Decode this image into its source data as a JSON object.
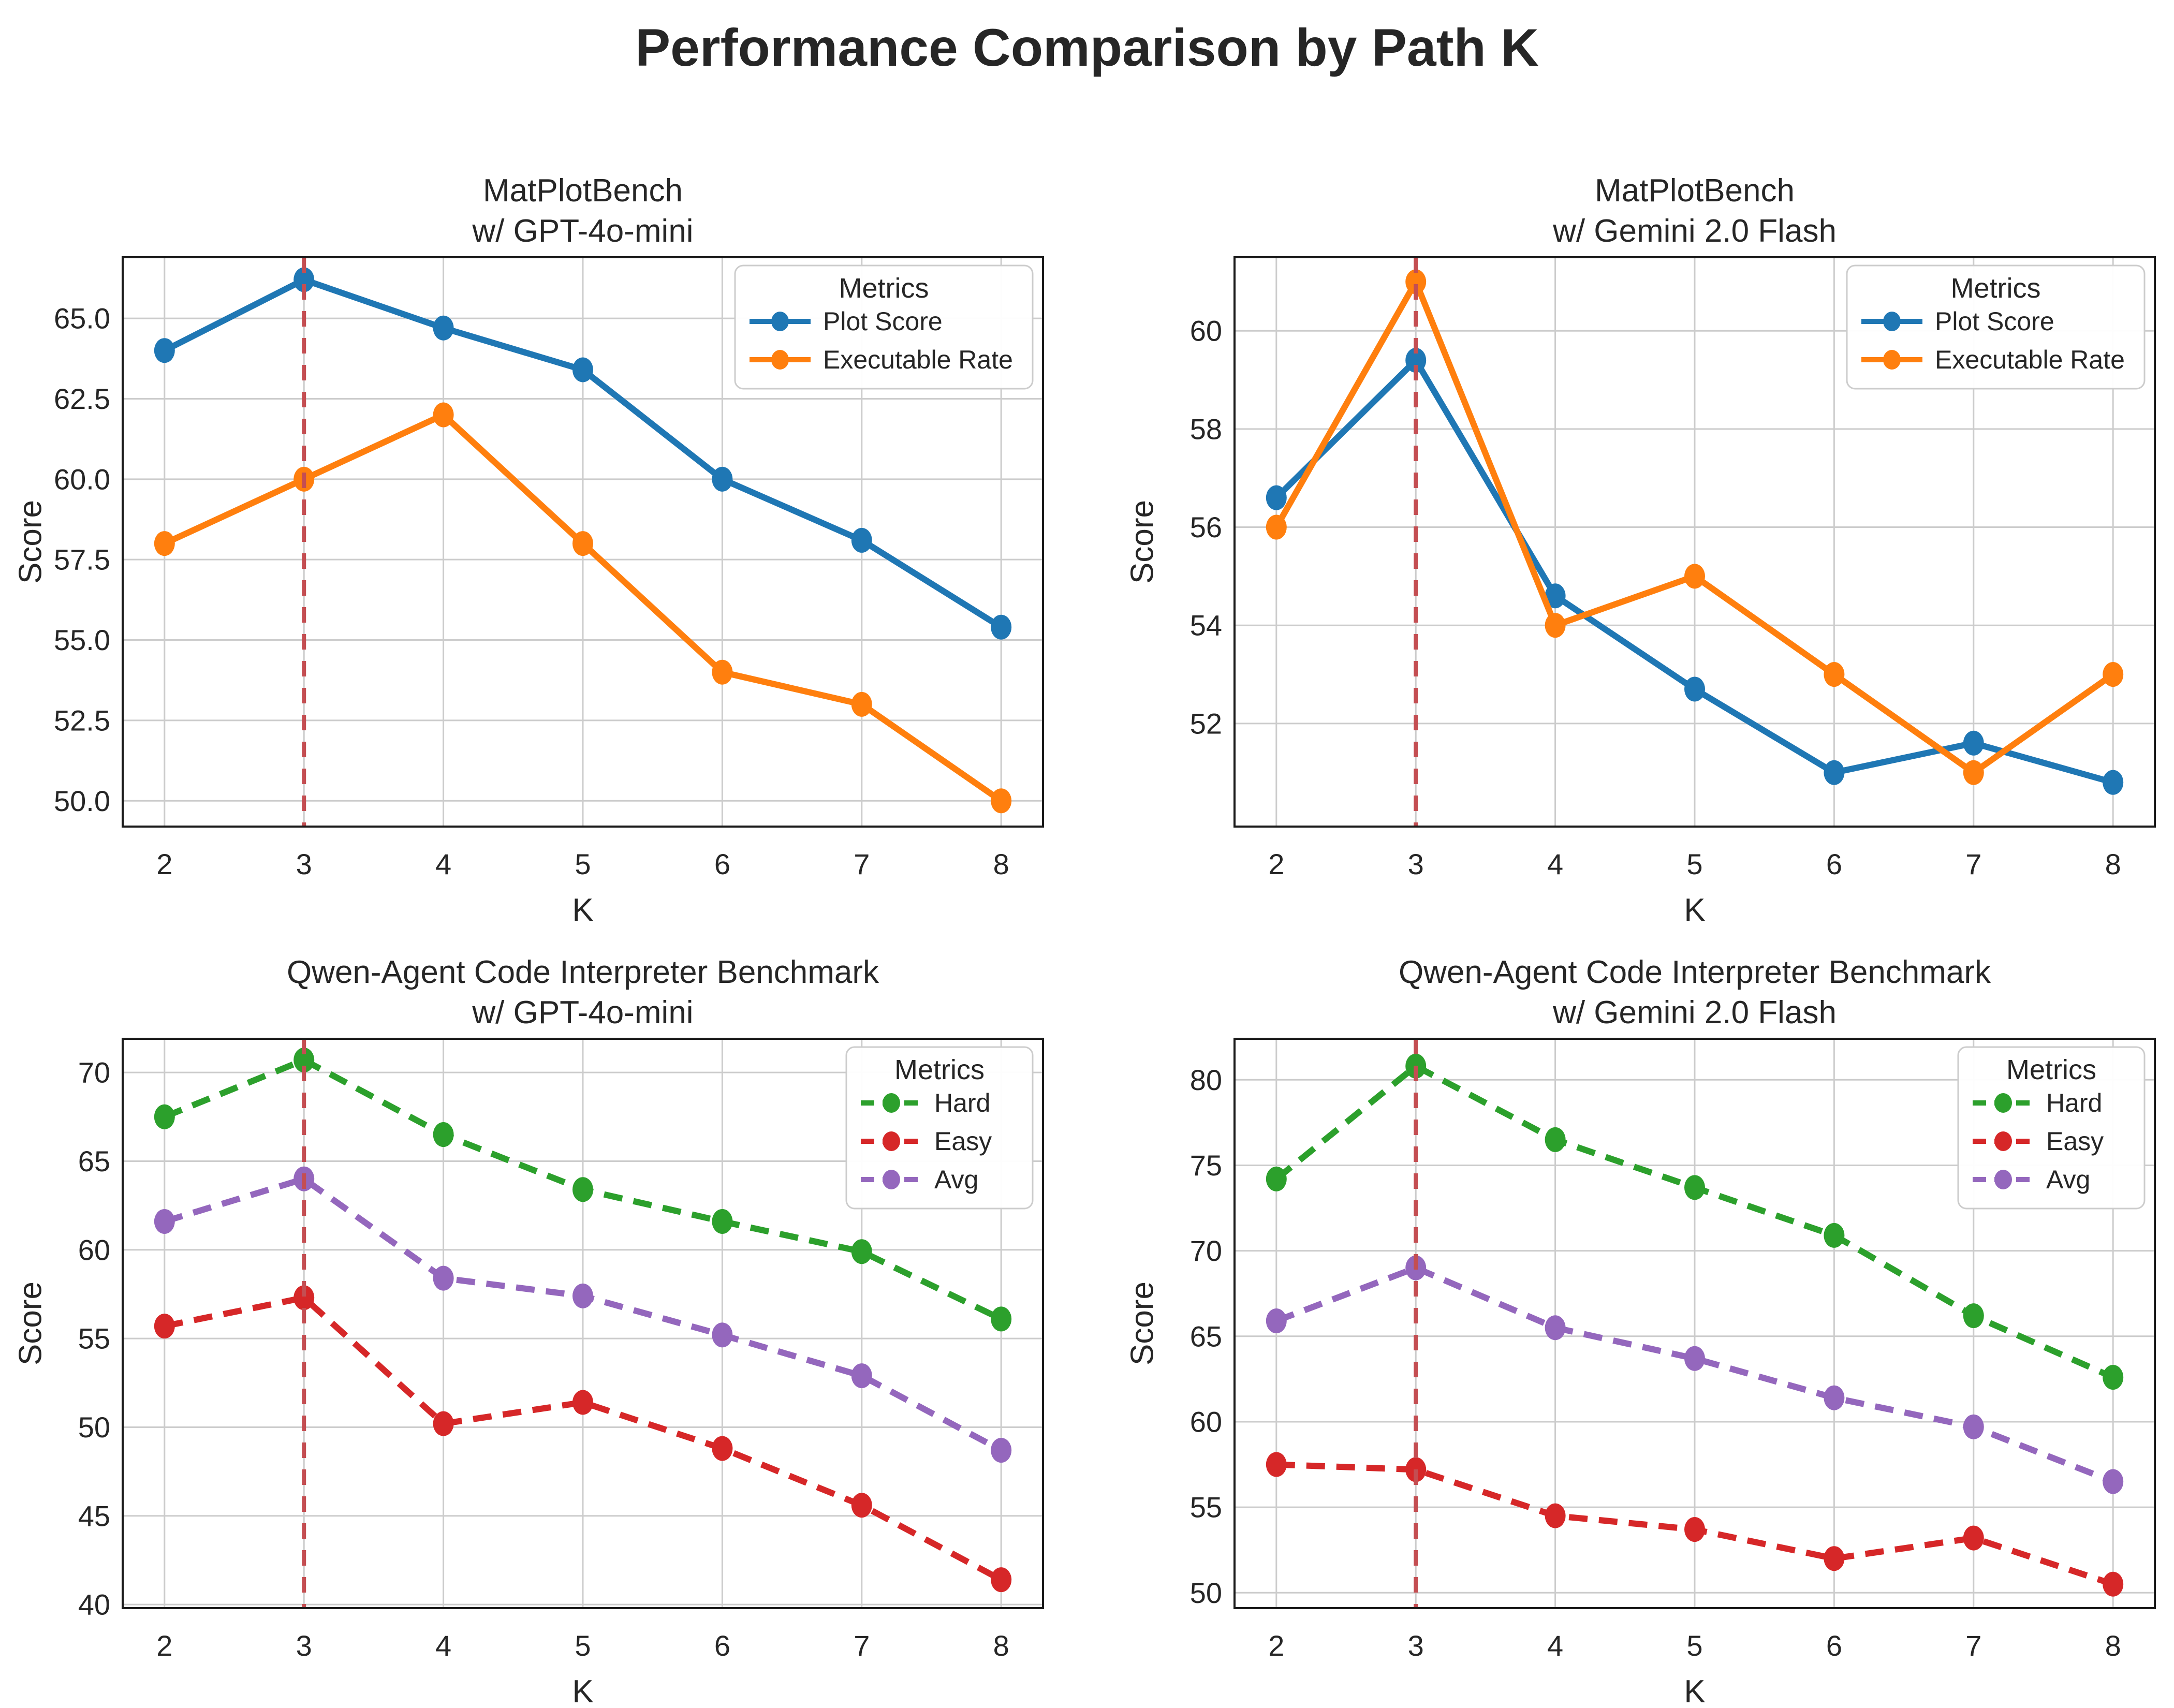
{
  "suptitle": "Performance Comparison by Path K",
  "colors": {
    "blue": "#1f77b4",
    "orange": "#ff7f0e",
    "green": "#2ca02c",
    "red": "#d62728",
    "purple": "#9467bd",
    "vline": "#c44e52",
    "grid": "#cccccc",
    "spine": "#1a1a1a",
    "text": "#262626",
    "legend_border": "#cccccc",
    "background": "#ffffff"
  },
  "chart_data": [
    {
      "type": "line",
      "title_lines": [
        "MatPlotBench",
        "w/ GPT-4o-mini"
      ],
      "xlabel": "K",
      "ylabel": "Score",
      "legend_title": "Metrics",
      "legend_position": "upper right",
      "grid": true,
      "x": [
        2,
        3,
        4,
        5,
        6,
        7,
        8
      ],
      "xlim": [
        1.7,
        8.3
      ],
      "ylim": [
        49.2,
        66.9
      ],
      "yticks": [
        50.0,
        52.5,
        55.0,
        57.5,
        60.0,
        62.5,
        65.0
      ],
      "ytick_labels": [
        "50.0",
        "52.5",
        "55.0",
        "57.5",
        "60.0",
        "62.5",
        "65.0"
      ],
      "vline_x": 3,
      "line_style": "solid",
      "series": [
        {
          "name": "Plot Score",
          "color": "#1f77b4",
          "values": [
            64.0,
            66.2,
            64.7,
            63.4,
            60.0,
            58.1,
            55.4
          ]
        },
        {
          "name": "Executable Rate",
          "color": "#ff7f0e",
          "values": [
            58.0,
            60.0,
            62.0,
            58.0,
            54.0,
            53.0,
            50.0
          ]
        }
      ]
    },
    {
      "type": "line",
      "title_lines": [
        "MatPlotBench",
        "w/ Gemini 2.0 Flash"
      ],
      "xlabel": "K",
      "ylabel": "Score",
      "legend_title": "Metrics",
      "legend_position": "upper right",
      "grid": true,
      "x": [
        2,
        3,
        4,
        5,
        6,
        7,
        8
      ],
      "xlim": [
        1.7,
        8.3
      ],
      "ylim": [
        49.9,
        61.5
      ],
      "yticks": [
        52,
        54,
        56,
        58,
        60
      ],
      "ytick_labels": [
        "52",
        "54",
        "56",
        "58",
        "60"
      ],
      "vline_x": 3,
      "line_style": "solid",
      "series": [
        {
          "name": "Plot Score",
          "color": "#1f77b4",
          "values": [
            56.6,
            59.4,
            54.6,
            52.7,
            51.0,
            51.6,
            50.8
          ]
        },
        {
          "name": "Executable Rate",
          "color": "#ff7f0e",
          "values": [
            56.0,
            61.0,
            54.0,
            55.0,
            53.0,
            51.0,
            53.0
          ]
        }
      ]
    },
    {
      "type": "line",
      "title_lines": [
        "Qwen-Agent Code Interpreter Benchmark",
        "w/ GPT-4o-mini"
      ],
      "xlabel": "K",
      "ylabel": "Score",
      "legend_title": "Metrics",
      "legend_position": "upper right",
      "grid": true,
      "x": [
        2,
        3,
        4,
        5,
        6,
        7,
        8
      ],
      "xlim": [
        1.7,
        8.3
      ],
      "ylim": [
        39.8,
        71.9
      ],
      "yticks": [
        40,
        45,
        50,
        55,
        60,
        65,
        70
      ],
      "ytick_labels": [
        "40",
        "45",
        "50",
        "55",
        "60",
        "65",
        "70"
      ],
      "vline_x": 3,
      "line_style": "dashed",
      "series": [
        {
          "name": "Hard",
          "color": "#2ca02c",
          "values": [
            67.5,
            70.7,
            66.5,
            63.4,
            61.6,
            59.9,
            56.1
          ]
        },
        {
          "name": "Easy",
          "color": "#d62728",
          "values": [
            55.7,
            57.3,
            50.2,
            51.4,
            48.8,
            45.6,
            41.4
          ]
        },
        {
          "name": "Avg",
          "color": "#9467bd",
          "values": [
            61.6,
            64.0,
            58.4,
            57.4,
            55.2,
            52.9,
            48.7
          ]
        }
      ]
    },
    {
      "type": "line",
      "title_lines": [
        "Qwen-Agent Code Interpreter Benchmark",
        "w/ Gemini 2.0 Flash"
      ],
      "xlabel": "K",
      "ylabel": "Score",
      "legend_title": "Metrics",
      "legend_position": "upper right",
      "grid": true,
      "x": [
        2,
        3,
        4,
        5,
        6,
        7,
        8
      ],
      "xlim": [
        1.7,
        8.3
      ],
      "ylim": [
        49.1,
        82.4
      ],
      "yticks": [
        50,
        55,
        60,
        65,
        70,
        75,
        80
      ],
      "ytick_labels": [
        "50",
        "55",
        "60",
        "65",
        "70",
        "75",
        "80"
      ],
      "vline_x": 3,
      "line_style": "dashed",
      "series": [
        {
          "name": "Hard",
          "color": "#2ca02c",
          "values": [
            74.2,
            80.8,
            76.5,
            73.7,
            70.9,
            66.2,
            62.6
          ]
        },
        {
          "name": "Easy",
          "color": "#d62728",
          "values": [
            57.5,
            57.2,
            54.5,
            53.7,
            52.0,
            53.2,
            50.5
          ]
        },
        {
          "name": "Avg",
          "color": "#9467bd",
          "values": [
            65.9,
            69.0,
            65.5,
            63.7,
            61.4,
            59.7,
            56.5
          ]
        }
      ]
    }
  ]
}
